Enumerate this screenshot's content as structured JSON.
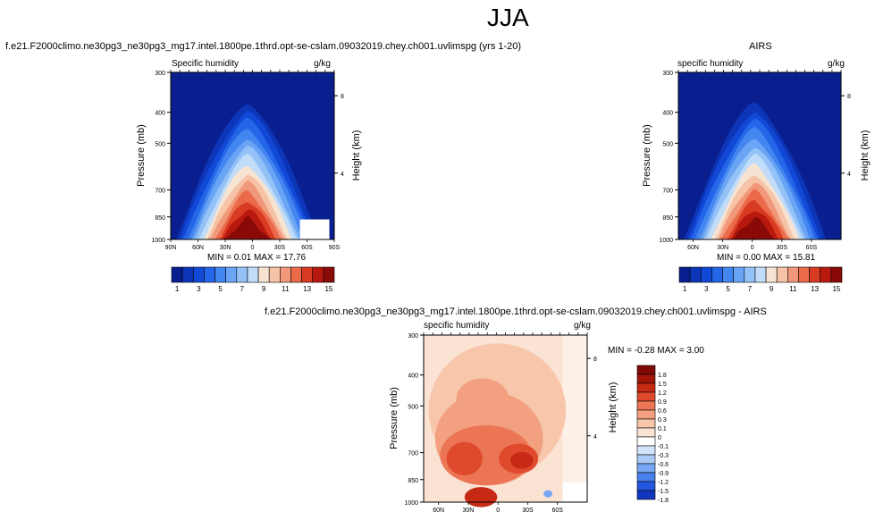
{
  "page": {
    "main_title": "JJA",
    "top_left_title": "f.e21.F2000climo.ne30pg3_ne30pg3_mg17.intel.1800pe.1thrd.opt-se-cslam.09032019.chey.ch001.uvlimspg (yrs 1-20)",
    "top_right_title": "AIRS",
    "bottom_title": "f.e21.F2000climo.ne30pg3_ne30pg3_mg17.intel.1800pe.1thrd.opt-se-cslam.09032019.chey.ch001.uvlimspg - AIRS"
  },
  "colors": {
    "blue_red": [
      "#0a1f8f",
      "#0d35b8",
      "#1248d6",
      "#2566e8",
      "#4486f0",
      "#6aa4f4",
      "#94c2f7",
      "#c0dcf9",
      "#f7e3d2",
      "#f6c3a6",
      "#f2987a",
      "#ea6a4a",
      "#d83b22",
      "#b8190e",
      "#8a0a08"
    ],
    "diff": [
      "#0a1f8f",
      "#1236c0",
      "#2457e0",
      "#4a80ee",
      "#78a7f3",
      "#a9c9f7",
      "#d3e4fa",
      "#ffffff",
      "#fbe3d4",
      "#f7c6ab",
      "#f2a07f",
      "#eb7554",
      "#df4a2d",
      "#c62a14",
      "#a2160a",
      "#7e0a05"
    ]
  },
  "chart_data": [
    {
      "type": "heatmap",
      "title": "Specific humidity",
      "units": "g/kg",
      "ylabel": "Pressure (mb)",
      "y2label": "Height (km)",
      "x_ticks": [
        "90N",
        "60N",
        "30N",
        "0",
        "30S",
        "60S",
        "90S"
      ],
      "y_ticks": [
        "300",
        "400",
        "500",
        "700",
        "850",
        "1000"
      ],
      "y2_ticks": [
        "8",
        "4"
      ],
      "stats": "MIN =   0.01   MAX =  17.76",
      "levels": [
        1,
        2,
        3,
        4,
        5,
        6,
        7,
        8,
        9,
        10,
        11,
        12,
        13,
        14,
        15
      ],
      "colorbar_labels": [
        "1",
        "3",
        "5",
        "7",
        "9",
        "11",
        "13",
        "15"
      ]
    },
    {
      "type": "heatmap",
      "title": "specific humidity",
      "units": "g/kg",
      "ylabel": "Pressure (mb)",
      "y2label": "Height (km)",
      "x_ticks": [
        "60N",
        "30N",
        "0",
        "30S",
        "60S"
      ],
      "y_ticks": [
        "300",
        "400",
        "500",
        "700",
        "850",
        "1000"
      ],
      "y2_ticks": [
        "8",
        "4"
      ],
      "stats": "MIN =   0.00   MAX =  15.81",
      "levels": [
        1,
        2,
        3,
        4,
        5,
        6,
        7,
        8,
        9,
        10,
        11,
        12,
        13,
        14,
        15
      ],
      "colorbar_labels": [
        "1",
        "3",
        "5",
        "7",
        "9",
        "11",
        "13",
        "15"
      ]
    },
    {
      "type": "heatmap",
      "title": "specific humidity",
      "units": "g/kg",
      "ylabel": "Pressure (mb)",
      "y2label": "Height (km)",
      "x_ticks": [
        "60N",
        "30N",
        "0",
        "30S",
        "60S"
      ],
      "y_ticks": [
        "300",
        "400",
        "500",
        "700",
        "850",
        "1000"
      ],
      "y2_ticks": [
        "8",
        "4"
      ],
      "stats": "MIN = -0.28   MAX =   3.00",
      "levels": [
        1.8,
        1.5,
        1.2,
        0.9,
        0.6,
        0.3,
        0.1,
        0,
        -0.1,
        -0.3,
        -0.6,
        -0.9,
        -1.2,
        -1.5,
        -1.8
      ],
      "colorbar_labels": [
        "1.8",
        "1.5",
        "1.2",
        "0.9",
        "0.6",
        "0.3",
        "0.1",
        "0",
        "-0.1",
        "-0.3",
        "-0.6",
        "-0.9",
        "-1.2",
        "-1.5",
        "-1.8"
      ]
    }
  ]
}
